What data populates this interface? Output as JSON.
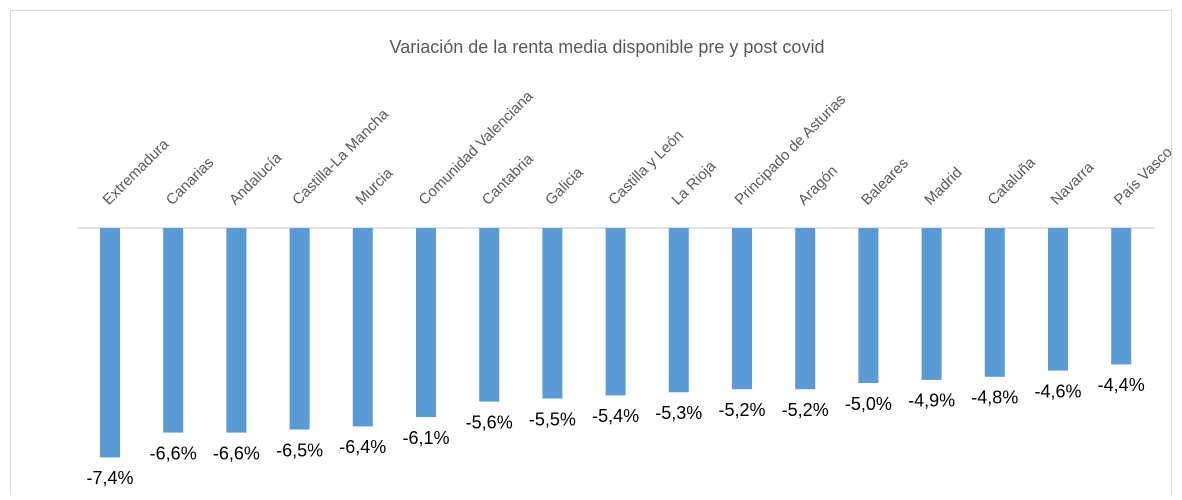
{
  "chart_data": {
    "type": "bar",
    "title": "Variación de la renta media disponible pre y post covid",
    "categories": [
      "Extremadura",
      "Canarias",
      "Andalucía",
      "Castilla-La Mancha",
      "Murcia",
      "Comunidad Valenciana",
      "Cantabria",
      "Galicia",
      "Castilla y León",
      "La Rioja",
      "Principado de Asturias",
      "Aragón",
      "Baleares",
      "Madrid",
      "Cataluña",
      "Navarra",
      "País Vasco"
    ],
    "values": [
      -7.4,
      -6.6,
      -6.6,
      -6.5,
      -6.4,
      -6.1,
      -5.6,
      -5.5,
      -5.4,
      -5.3,
      -5.2,
      -5.2,
      -5.0,
      -4.9,
      -4.8,
      -4.6,
      -4.4
    ],
    "value_labels": [
      "-7,4%",
      "-6,6%",
      "-6,6%",
      "-6,5%",
      "-6,4%",
      "-6,1%",
      "-5,6%",
      "-5,5%",
      "-5,4%",
      "-5,3%",
      "-5,2%",
      "-5,2%",
      "-5,0%",
      "-4,9%",
      "-4,8%",
      "-4,6%",
      "-4,4%"
    ],
    "color": "#5b9bd5"
  }
}
